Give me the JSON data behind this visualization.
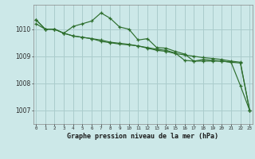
{
  "title": "Graphe pression niveau de la mer (hPa)",
  "background_color": "#cce8e8",
  "grid_color": "#aacccc",
  "line_color": "#2d6e2d",
  "x_labels": [
    "0",
    "1",
    "2",
    "3",
    "4",
    "5",
    "6",
    "7",
    "8",
    "9",
    "10",
    "11",
    "12",
    "13",
    "14",
    "15",
    "16",
    "17",
    "18",
    "19",
    "20",
    "21",
    "22",
    "23"
  ],
  "ylim": [
    1006.5,
    1010.9
  ],
  "yticks": [
    1007,
    1008,
    1009,
    1010
  ],
  "series1": [
    1010.2,
    1010.0,
    1010.0,
    1009.85,
    1009.75,
    1009.7,
    1009.65,
    1009.55,
    1009.5,
    1009.45,
    1009.42,
    1009.38,
    1009.3,
    1009.22,
    1009.18,
    1009.1,
    1009.05,
    1009.0,
    1008.95,
    1008.92,
    1008.88,
    1008.82,
    1008.78,
    1007.0
  ],
  "series2": [
    1010.35,
    1010.0,
    1010.0,
    1009.85,
    1010.1,
    1010.2,
    1010.3,
    1010.6,
    1010.4,
    1010.08,
    1010.0,
    1009.6,
    1009.65,
    1009.32,
    1009.3,
    1009.18,
    1009.08,
    1008.82,
    1008.88,
    1008.85,
    1008.82,
    1008.78,
    1007.92,
    1007.0
  ],
  "series3": [
    1010.35,
    1010.0,
    1010.0,
    1009.85,
    1009.75,
    1009.7,
    1009.65,
    1009.6,
    1009.52,
    1009.48,
    1009.44,
    1009.38,
    1009.32,
    1009.26,
    1009.22,
    1009.12,
    1008.85,
    1008.82,
    1008.82,
    1008.82,
    1008.82,
    1008.78,
    1008.75,
    1007.0
  ]
}
